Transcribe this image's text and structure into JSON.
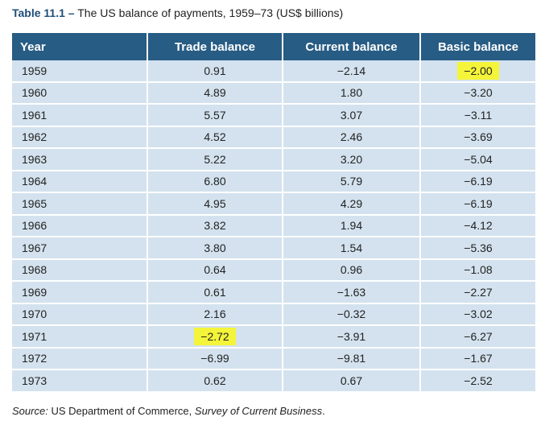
{
  "caption": {
    "label": "Table 11.1",
    "separator": "–",
    "title": "The US balance of payments, 1959–73 (US$ billions)"
  },
  "table": {
    "headers": [
      "Year",
      "Trade balance",
      "Current balance",
      "Basic balance"
    ],
    "rows": [
      [
        "1959",
        "0.91",
        "−2.14",
        "−2.00"
      ],
      [
        "1960",
        "4.89",
        "1.80",
        "−3.20"
      ],
      [
        "1961",
        "5.57",
        "3.07",
        "−3.11"
      ],
      [
        "1962",
        "4.52",
        "2.46",
        "−3.69"
      ],
      [
        "1963",
        "5.22",
        "3.20",
        "−5.04"
      ],
      [
        "1964",
        "6.80",
        "5.79",
        "−6.19"
      ],
      [
        "1965",
        "4.95",
        "4.29",
        "−6.19"
      ],
      [
        "1966",
        "3.82",
        "1.94",
        "−4.12"
      ],
      [
        "1967",
        "3.80",
        "1.54",
        "−5.36"
      ],
      [
        "1968",
        "0.64",
        "0.96",
        "−1.08"
      ],
      [
        "1969",
        "0.61",
        "−1.63",
        "−2.27"
      ],
      [
        "1970",
        "2.16",
        "−0.32",
        "−3.02"
      ],
      [
        "1971",
        "−2.72",
        "−3.91",
        "−6.27"
      ],
      [
        "1972",
        "−6.99",
        "−9.81",
        "−1.67"
      ],
      [
        "1973",
        "0.62",
        "0.67",
        "−2.52"
      ]
    ],
    "highlighted_cells": [
      {
        "row": 0,
        "col": 3
      },
      {
        "row": 12,
        "col": 1
      }
    ],
    "colors": {
      "header_bg": "#275c84",
      "row_bg": "#d3e2ee",
      "highlight": "#f4f43a",
      "caption_label": "#1f4e79"
    }
  },
  "source": {
    "label": "Source:",
    "text_1": "US Department of Commerce,",
    "publication": "Survey of Current Business",
    "end": "."
  }
}
